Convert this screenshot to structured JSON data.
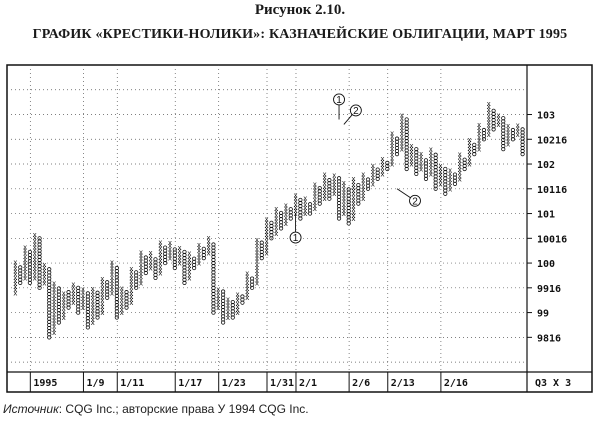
{
  "figure_label": "Рисунок 2.10.",
  "source": {
    "prefix": "Источник",
    "text": ": CQG Inc.; авторские права У 1994 CQG Inc."
  },
  "chart_data": {
    "type": "point-and-figure",
    "title": "ГРАФИК «КРЕСТИКИ-НОЛИКИ»: КАЗНАЧЕЙСКИЕ ОБЛИГАЦИИ, МАРТ 1995",
    "box_size_ticks": 2,
    "price_unit_ticks_per_point": 32,
    "reversal_boxes": 3,
    "corner_label": "Q3 X 3",
    "ylim": [
      97.8,
      104.0
    ],
    "grid": true,
    "y_ticks": [
      {
        "v": 103.0,
        "l": "103"
      },
      {
        "v": 102.5,
        "l": "10216"
      },
      {
        "v": 102.0,
        "l": "102"
      },
      {
        "v": 101.5,
        "l": "10116"
      },
      {
        "v": 101.0,
        "l": "101"
      },
      {
        "v": 100.5,
        "l": "10016"
      },
      {
        "v": 100.0,
        "l": "100"
      },
      {
        "v": 99.5,
        "l": "9916"
      },
      {
        "v": 99.0,
        "l": "99"
      },
      {
        "v": 98.5,
        "l": "9816"
      }
    ],
    "x_ticks": [
      {
        "col": 4,
        "l": "1995"
      },
      {
        "col": 15,
        "l": "1/9"
      },
      {
        "col": 22,
        "l": "1/11"
      },
      {
        "col": 34,
        "l": "1/17"
      },
      {
        "col": 43,
        "l": "1/23"
      },
      {
        "col": 53,
        "l": "1/31"
      },
      {
        "col": 59,
        "l": "2/1"
      },
      {
        "col": 70,
        "l": "2/6"
      },
      {
        "col": 78,
        "l": "2/13"
      },
      {
        "col": 89,
        "l": "2/16"
      }
    ],
    "columns": [
      {
        "t": "X",
        "lo": 99.4,
        "hi": 100.0
      },
      {
        "t": "O",
        "lo": 99.6,
        "hi": 99.9
      },
      {
        "t": "X",
        "lo": 99.7,
        "hi": 100.3
      },
      {
        "t": "O",
        "lo": 99.6,
        "hi": 100.2
      },
      {
        "t": "X",
        "lo": 99.7,
        "hi": 100.6
      },
      {
        "t": "O",
        "lo": 99.5,
        "hi": 100.5
      },
      {
        "t": "X",
        "lo": 99.6,
        "hi": 100.0
      },
      {
        "t": "O",
        "lo": 98.5,
        "hi": 99.9
      },
      {
        "t": "X",
        "lo": 98.6,
        "hi": 99.6
      },
      {
        "t": "O",
        "lo": 98.8,
        "hi": 99.5
      },
      {
        "t": "X",
        "lo": 98.9,
        "hi": 99.4
      },
      {
        "t": "O",
        "lo": 99.1,
        "hi": 99.4
      },
      {
        "t": "X",
        "lo": 99.2,
        "hi": 99.6
      },
      {
        "t": "O",
        "lo": 99.0,
        "hi": 99.5
      },
      {
        "t": "X",
        "lo": 99.1,
        "hi": 99.5
      },
      {
        "t": "O",
        "lo": 98.7,
        "hi": 99.4
      },
      {
        "t": "X",
        "lo": 98.8,
        "hi": 99.5
      },
      {
        "t": "O",
        "lo": 98.9,
        "hi": 99.4
      },
      {
        "t": "X",
        "lo": 99.0,
        "hi": 99.7
      },
      {
        "t": "O",
        "lo": 99.3,
        "hi": 99.6
      },
      {
        "t": "X",
        "lo": 99.4,
        "hi": 100.0
      },
      {
        "t": "O",
        "lo": 98.9,
        "hi": 99.9
      },
      {
        "t": "X",
        "lo": 99.0,
        "hi": 99.5
      },
      {
        "t": "O",
        "lo": 99.1,
        "hi": 99.4
      },
      {
        "t": "X",
        "lo": 99.2,
        "hi": 99.9
      },
      {
        "t": "O",
        "lo": 99.5,
        "hi": 99.8
      },
      {
        "t": "X",
        "lo": 99.6,
        "hi": 100.2
      },
      {
        "t": "O",
        "lo": 99.8,
        "hi": 100.1
      },
      {
        "t": "X",
        "lo": 99.9,
        "hi": 100.2
      },
      {
        "t": "O",
        "lo": 99.7,
        "hi": 100.1
      },
      {
        "t": "X",
        "lo": 99.8,
        "hi": 100.4
      },
      {
        "t": "O",
        "lo": 100.0,
        "hi": 100.3
      },
      {
        "t": "X",
        "lo": 100.1,
        "hi": 100.4
      },
      {
        "t": "O",
        "lo": 99.9,
        "hi": 100.3
      },
      {
        "t": "X",
        "lo": 100.0,
        "hi": 100.3
      },
      {
        "t": "O",
        "lo": 99.6,
        "hi": 100.2
      },
      {
        "t": "X",
        "lo": 99.7,
        "hi": 100.2
      },
      {
        "t": "O",
        "lo": 99.9,
        "hi": 100.1
      },
      {
        "t": "X",
        "lo": 100.0,
        "hi": 100.4
      },
      {
        "t": "O",
        "lo": 100.1,
        "hi": 100.3
      },
      {
        "t": "X",
        "lo": 100.2,
        "hi": 100.5
      },
      {
        "t": "O",
        "lo": 99.0,
        "hi": 100.4
      },
      {
        "t": "X",
        "lo": 99.1,
        "hi": 99.5
      },
      {
        "t": "O",
        "lo": 98.8,
        "hi": 99.4
      },
      {
        "t": "X",
        "lo": 98.9,
        "hi": 99.3
      },
      {
        "t": "O",
        "lo": 98.9,
        "hi": 99.2
      },
      {
        "t": "X",
        "lo": 99.0,
        "hi": 99.4
      },
      {
        "t": "O",
        "lo": 99.2,
        "hi": 99.3
      },
      {
        "t": "X",
        "lo": 99.3,
        "hi": 99.8
      },
      {
        "t": "O",
        "lo": 99.5,
        "hi": 99.7
      },
      {
        "t": "X",
        "lo": 99.6,
        "hi": 100.5
      },
      {
        "t": "O",
        "lo": 100.1,
        "hi": 100.4
      },
      {
        "t": "X",
        "lo": 100.2,
        "hi": 100.9
      },
      {
        "t": "O",
        "lo": 100.5,
        "hi": 100.8
      },
      {
        "t": "X",
        "lo": 100.6,
        "hi": 101.1
      },
      {
        "t": "O",
        "lo": 100.7,
        "hi": 101.0
      },
      {
        "t": "X",
        "lo": 100.8,
        "hi": 101.2
      },
      {
        "t": "O",
        "lo": 100.9,
        "hi": 101.1
      },
      {
        "t": "X",
        "lo": 101.0,
        "hi": 101.4
      },
      {
        "t": "O",
        "lo": 100.9,
        "hi": 101.3
      },
      {
        "t": "X",
        "lo": 101.0,
        "hi": 101.3
      },
      {
        "t": "O",
        "lo": 101.0,
        "hi": 101.2
      },
      {
        "t": "X",
        "lo": 101.1,
        "hi": 101.6
      },
      {
        "t": "O",
        "lo": 101.2,
        "hi": 101.5
      },
      {
        "t": "X",
        "lo": 101.3,
        "hi": 101.8
      },
      {
        "t": "O",
        "lo": 101.3,
        "hi": 101.7
      },
      {
        "t": "X",
        "lo": 101.4,
        "hi": 101.8
      },
      {
        "t": "O",
        "lo": 100.9,
        "hi": 101.7
      },
      {
        "t": "X",
        "lo": 101.0,
        "hi": 101.6
      },
      {
        "t": "O",
        "lo": 100.8,
        "hi": 101.5
      },
      {
        "t": "X",
        "lo": 100.9,
        "hi": 101.7
      },
      {
        "t": "O",
        "lo": 101.2,
        "hi": 101.6
      },
      {
        "t": "X",
        "lo": 101.3,
        "hi": 101.8
      },
      {
        "t": "O",
        "lo": 101.5,
        "hi": 101.7
      },
      {
        "t": "X",
        "lo": 101.6,
        "hi": 102.0
      },
      {
        "t": "O",
        "lo": 101.7,
        "hi": 101.9
      },
      {
        "t": "X",
        "lo": 101.8,
        "hi": 102.1
      },
      {
        "t": "O",
        "lo": 101.9,
        "hi": 102.0
      },
      {
        "t": "X",
        "lo": 102.0,
        "hi": 102.6
      },
      {
        "t": "O",
        "lo": 102.2,
        "hi": 102.5
      },
      {
        "t": "X",
        "lo": 102.3,
        "hi": 103.0
      },
      {
        "t": "O",
        "lo": 101.9,
        "hi": 102.9
      },
      {
        "t": "X",
        "lo": 102.0,
        "hi": 102.4
      },
      {
        "t": "O",
        "lo": 101.8,
        "hi": 102.3
      },
      {
        "t": "X",
        "lo": 101.9,
        "hi": 102.2
      },
      {
        "t": "O",
        "lo": 101.7,
        "hi": 102.1
      },
      {
        "t": "X",
        "lo": 101.8,
        "hi": 102.3
      },
      {
        "t": "O",
        "lo": 101.5,
        "hi": 102.2
      },
      {
        "t": "X",
        "lo": 101.6,
        "hi": 102.0
      },
      {
        "t": "O",
        "lo": 101.4,
        "hi": 101.9
      },
      {
        "t": "X",
        "lo": 101.5,
        "hi": 101.9
      },
      {
        "t": "O",
        "lo": 101.6,
        "hi": 101.8
      },
      {
        "t": "X",
        "lo": 101.7,
        "hi": 102.2
      },
      {
        "t": "O",
        "lo": 101.9,
        "hi": 102.1
      },
      {
        "t": "X",
        "lo": 102.0,
        "hi": 102.5
      },
      {
        "t": "O",
        "lo": 102.2,
        "hi": 102.4
      },
      {
        "t": "X",
        "lo": 102.3,
        "hi": 102.8
      },
      {
        "t": "O",
        "lo": 102.5,
        "hi": 102.7
      },
      {
        "t": "X",
        "lo": 102.6,
        "hi": 103.2
      },
      {
        "t": "O",
        "lo": 102.7,
        "hi": 103.1
      },
      {
        "t": "X",
        "lo": 102.8,
        "hi": 103.0
      },
      {
        "t": "O",
        "lo": 102.3,
        "hi": 102.9
      },
      {
        "t": "X",
        "lo": 102.4,
        "hi": 102.8
      },
      {
        "t": "O",
        "lo": 102.5,
        "hi": 102.7
      },
      {
        "t": "X",
        "lo": 102.6,
        "hi": 102.8
      },
      {
        "t": "O",
        "lo": 102.2,
        "hi": 102.7
      }
    ],
    "annotations": [
      {
        "label": "1",
        "price": 101.0,
        "col": 58,
        "anchor": "below"
      },
      {
        "label": "1",
        "price": 102.9,
        "col": 67,
        "anchor": "above"
      },
      {
        "label": "2",
        "price": 102.8,
        "col": 68,
        "anchor": "above-right"
      },
      {
        "label": "2",
        "price": 101.5,
        "col": 79,
        "anchor": "below-right"
      }
    ]
  }
}
